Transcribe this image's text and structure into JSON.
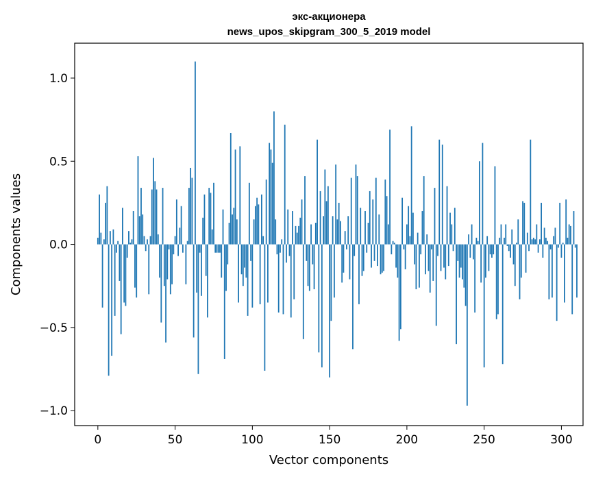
{
  "chart_data": {
    "type": "bar",
    "title_line1": "экс-акционера",
    "title_line2": "news_upos_skipgram_300_5_2019 model",
    "xlabel": "Vector components",
    "ylabel": "Components values",
    "xlim": [
      -15,
      314
    ],
    "ylim": [
      -1.09,
      1.21
    ],
    "xticks": [
      0,
      50,
      100,
      150,
      200,
      250,
      300
    ],
    "xtick_labels": [
      "0",
      "50",
      "100",
      "150",
      "200",
      "250",
      "300"
    ],
    "yticks": [
      -1.0,
      -0.5,
      0.0,
      0.5,
      1.0
    ],
    "ytick_labels": [
      "−1.0",
      "−0.5",
      "0.0",
      "0.5",
      "1.0"
    ],
    "bar_color": "#1f77b4",
    "grid": false,
    "values": [
      0.04,
      0.3,
      0.07,
      -0.38,
      0.03,
      0.25,
      0.35,
      -0.79,
      0.08,
      -0.67,
      0.09,
      -0.43,
      -0.05,
      0.02,
      -0.22,
      -0.54,
      0.22,
      -0.35,
      -0.37,
      -0.08,
      0.08,
      0.01,
      0.03,
      0.2,
      -0.26,
      -0.32,
      0.53,
      0.17,
      0.34,
      0.18,
      0.05,
      -0.04,
      0.03,
      -0.3,
      0.05,
      0.33,
      0.52,
      0.38,
      0.33,
      0.06,
      -0.2,
      -0.47,
      0.34,
      -0.25,
      -0.59,
      -0.21,
      -0.03,
      -0.3,
      -0.24,
      -0.06,
      0.05,
      0.27,
      -0.07,
      0.1,
      0.23,
      -0.05,
      0.0,
      -0.24,
      0.02,
      0.34,
      0.46,
      0.4,
      -0.56,
      1.1,
      -0.29,
      -0.78,
      -0.05,
      -0.31,
      0.16,
      0.3,
      -0.19,
      -0.44,
      0.34,
      0.31,
      0.09,
      0.37,
      -0.05,
      -0.05,
      -0.05,
      -0.05,
      -0.2,
      0.21,
      -0.69,
      -0.28,
      -0.12,
      0.13,
      0.67,
      0.18,
      0.22,
      0.57,
      0.15,
      -0.35,
      0.59,
      -0.18,
      -0.25,
      -0.14,
      -0.2,
      -0.43,
      0.37,
      -0.1,
      -0.38,
      0.15,
      0.23,
      0.28,
      0.24,
      -0.36,
      0.3,
      0.05,
      -0.76,
      0.39,
      -0.35,
      0.61,
      0.57,
      0.49,
      0.8,
      0.15,
      -0.06,
      -0.41,
      -0.05,
      0.03,
      -0.42,
      0.72,
      -0.11,
      0.21,
      -0.07,
      -0.44,
      0.2,
      -0.33,
      0.11,
      0.07,
      0.11,
      0.16,
      0.27,
      -0.57,
      0.41,
      -0.1,
      -0.25,
      -0.28,
      0.12,
      -0.12,
      -0.27,
      0.13,
      0.63,
      -0.65,
      0.32,
      -0.74,
      0.17,
      0.45,
      0.26,
      0.35,
      -0.8,
      -0.46,
      0.17,
      -0.32,
      0.48,
      0.15,
      0.25,
      0.14,
      -0.23,
      -0.17,
      0.08,
      -0.03,
      0.17,
      -0.21,
      0.4,
      -0.63,
      -0.07,
      0.48,
      0.41,
      -0.36,
      0.22,
      -0.19,
      -0.16,
      0.2,
      -0.05,
      0.13,
      0.32,
      -0.14,
      0.27,
      -0.1,
      0.4,
      -0.13,
      0.18,
      -0.18,
      -0.17,
      -0.16,
      0.39,
      0.29,
      0.12,
      0.69,
      -0.06,
      0.02,
      0.01,
      -0.14,
      -0.2,
      -0.58,
      -0.51,
      0.28,
      -0.03,
      -0.15,
      0.12,
      0.23,
      0.05,
      0.71,
      0.19,
      -0.12,
      -0.27,
      0.07,
      -0.26,
      -0.06,
      0.2,
      0.41,
      -0.18,
      0.06,
      -0.16,
      -0.29,
      -0.03,
      -0.22,
      0.34,
      -0.49,
      -0.07,
      0.63,
      -0.16,
      0.6,
      -0.14,
      -0.21,
      0.35,
      -0.13,
      0.19,
      0.12,
      -0.04,
      0.22,
      -0.6,
      -0.1,
      -0.2,
      -0.14,
      -0.21,
      -0.26,
      -0.37,
      -0.97,
      0.06,
      -0.08,
      0.12,
      -0.09,
      -0.41,
      0.04,
      0.02,
      0.5,
      -0.23,
      0.61,
      -0.74,
      -0.2,
      0.05,
      -0.16,
      -0.06,
      -0.08,
      -0.06,
      0.47,
      -0.45,
      -0.42,
      0.04,
      0.12,
      -0.72,
      0.04,
      0.12,
      -0.01,
      -0.04,
      -0.08,
      0.09,
      -0.12,
      -0.25,
      0.01,
      0.15,
      -0.33,
      -0.2,
      0.26,
      0.25,
      -0.17,
      0.07,
      -0.04,
      0.63,
      0.03,
      0.04,
      0.03,
      0.12,
      -0.05,
      0.03,
      0.25,
      -0.08,
      0.1,
      0.04,
      0.02,
      -0.33,
      -0.03,
      -0.32,
      0.05,
      0.1,
      -0.46,
      -0.02,
      0.25,
      -0.08,
      0.01,
      -0.35,
      0.27,
      0.04,
      0.12,
      0.11,
      -0.42,
      0.2,
      -0.02,
      -0.32,
      0.0
    ]
  }
}
